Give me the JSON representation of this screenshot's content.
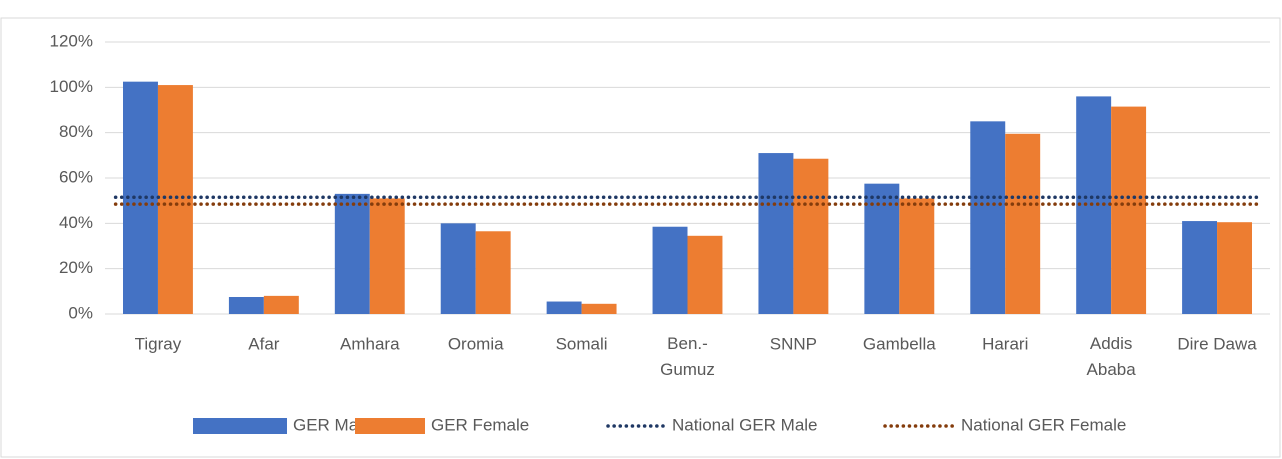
{
  "chart_data": {
    "type": "bar",
    "categories": [
      "Tigray",
      "Afar",
      "Amhara",
      "Oromia",
      "Somali",
      "Ben.-\nGumuz",
      "SNNP",
      "Gambella",
      "Harari",
      "Addis\nAbaba",
      "Dire Dawa"
    ],
    "series": [
      {
        "name": "GER Male",
        "type": "bar",
        "color": "#4472c4",
        "values": [
          102.5,
          7.5,
          53,
          40,
          5.5,
          38.5,
          71,
          57.5,
          85,
          96,
          41
        ]
      },
      {
        "name": "GER Female",
        "type": "bar",
        "color": "#ed7d31",
        "values": [
          101,
          8,
          51,
          36.5,
          4.5,
          34.5,
          68.5,
          51,
          79.5,
          91.5,
          40.5
        ]
      },
      {
        "name": "National GER Male",
        "type": "line",
        "color": "#1f3864",
        "values": [
          51.5,
          51.5,
          51.5,
          51.5,
          51.5,
          51.5,
          51.5,
          51.5,
          51.5,
          51.5,
          51.5
        ]
      },
      {
        "name": "National GER Female",
        "type": "line",
        "color": "#843c0c",
        "values": [
          48.5,
          48.5,
          48.5,
          48.5,
          48.5,
          48.5,
          48.5,
          48.5,
          48.5,
          48.5,
          48.5
        ]
      }
    ],
    "ylim": [
      0,
      120
    ],
    "yticks": [
      {
        "value": 0,
        "label": "0%"
      },
      {
        "value": 20,
        "label": "20%"
      },
      {
        "value": 40,
        "label": "40%"
      },
      {
        "value": 60,
        "label": "60%"
      },
      {
        "value": 80,
        "label": "80%"
      },
      {
        "value": 100,
        "label": "100%"
      },
      {
        "value": 120,
        "label": "120%"
      }
    ],
    "grid": true,
    "legend": "bottom"
  }
}
